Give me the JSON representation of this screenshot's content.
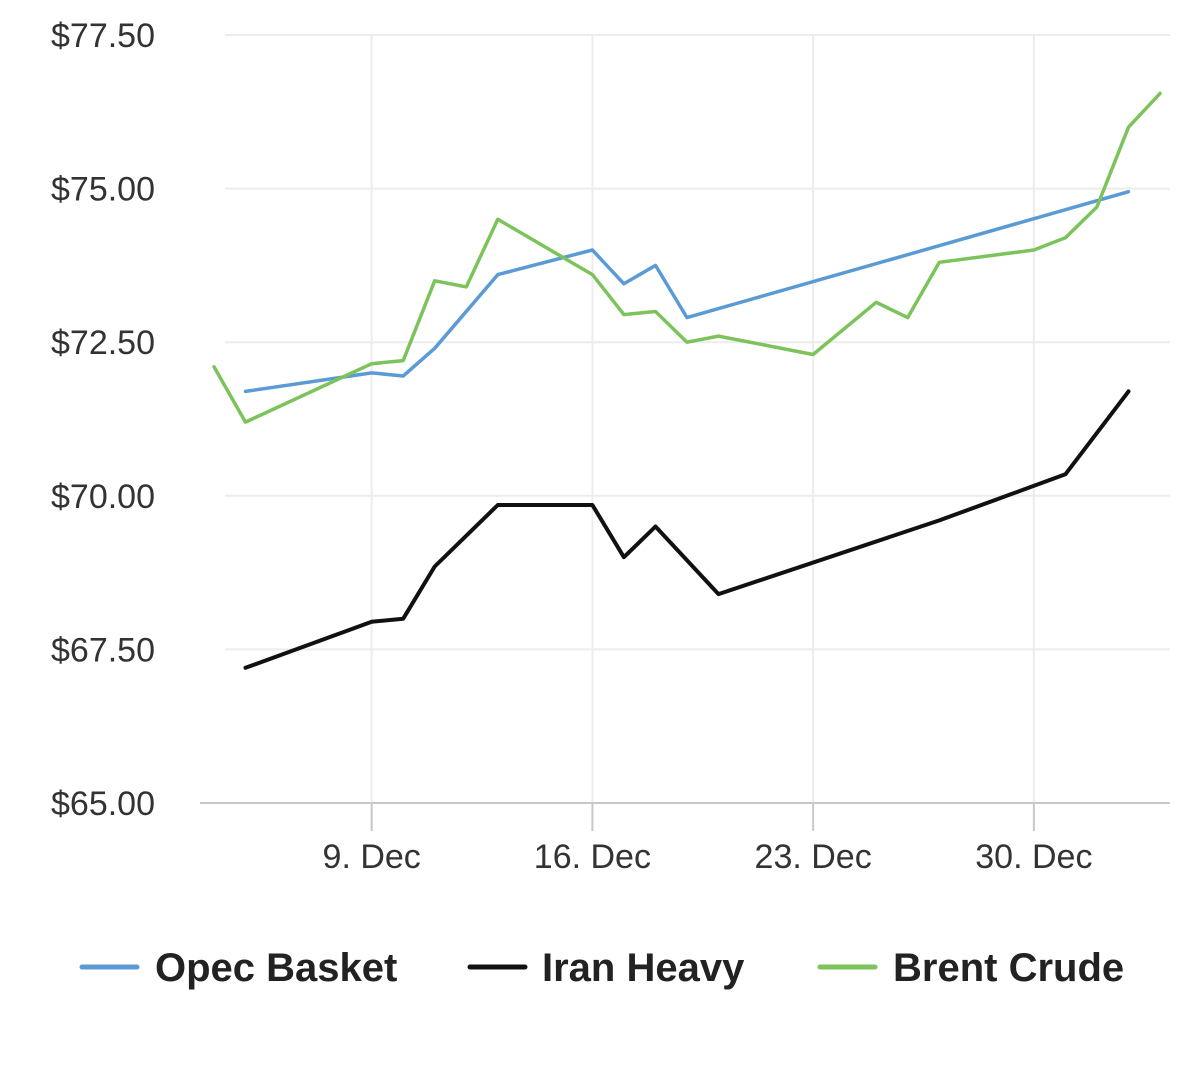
{
  "chart_data": {
    "type": "line",
    "title": "",
    "xlabel": "",
    "ylabel": "",
    "ylim": [
      65,
      77.5
    ],
    "y_ticks": [
      "$65.00",
      "$67.50",
      "$70.00",
      "$72.50",
      "$75.00",
      "$77.50"
    ],
    "x_range": [
      "Dec 4",
      "Jan 3"
    ],
    "x_ticks": [
      {
        "label": "9. Dec",
        "x": "Dec 9"
      },
      {
        "label": "16. Dec",
        "x": "Dec 16"
      },
      {
        "label": "23. Dec",
        "x": "Dec 23"
      },
      {
        "label": "30. Dec",
        "x": "Dec 30"
      }
    ],
    "grid": true,
    "legend_position": "bottom",
    "series": [
      {
        "name": "Opec Basket",
        "color": "#5b9bd5",
        "points": [
          {
            "x": "Dec 5",
            "y": 71.7
          },
          {
            "x": "Dec 9",
            "y": 72.0
          },
          {
            "x": "Dec 10",
            "y": 71.95
          },
          {
            "x": "Dec 11",
            "y": 72.4
          },
          {
            "x": "Dec 13",
            "y": 73.6
          },
          {
            "x": "Dec 16",
            "y": 74.0
          },
          {
            "x": "Dec 17",
            "y": 73.45
          },
          {
            "x": "Dec 18",
            "y": 73.75
          },
          {
            "x": "Dec 19",
            "y": 72.9
          },
          {
            "x": "Jan 2",
            "y": 74.95
          }
        ]
      },
      {
        "name": "Iran Heavy",
        "color": "#111111",
        "points": [
          {
            "x": "Dec 5",
            "y": 67.2
          },
          {
            "x": "Dec 9",
            "y": 67.95
          },
          {
            "x": "Dec 10",
            "y": 68.0
          },
          {
            "x": "Dec 11",
            "y": 68.85
          },
          {
            "x": "Dec 13",
            "y": 69.85
          },
          {
            "x": "Dec 16",
            "y": 69.85
          },
          {
            "x": "Dec 17",
            "y": 69.0
          },
          {
            "x": "Dec 18",
            "y": 69.5
          },
          {
            "x": "Dec 20",
            "y": 68.4
          },
          {
            "x": "Dec 27",
            "y": 69.6
          },
          {
            "x": "Dec 31",
            "y": 70.35
          },
          {
            "x": "Jan 2",
            "y": 71.7
          }
        ]
      },
      {
        "name": "Brent Crude",
        "color": "#7dc35b",
        "points": [
          {
            "x": "Dec 4",
            "y": 72.1
          },
          {
            "x": "Dec 5",
            "y": 71.2
          },
          {
            "x": "Dec 9",
            "y": 72.15
          },
          {
            "x": "Dec 10",
            "y": 72.2
          },
          {
            "x": "Dec 11",
            "y": 73.5
          },
          {
            "x": "Dec 12",
            "y": 73.4
          },
          {
            "x": "Dec 13",
            "y": 74.5
          },
          {
            "x": "Dec 16",
            "y": 73.6
          },
          {
            "x": "Dec 17",
            "y": 72.95
          },
          {
            "x": "Dec 18",
            "y": 73.0
          },
          {
            "x": "Dec 19",
            "y": 72.5
          },
          {
            "x": "Dec 20",
            "y": 72.6
          },
          {
            "x": "Dec 23",
            "y": 72.3
          },
          {
            "x": "Dec 25",
            "y": 73.15
          },
          {
            "x": "Dec 26",
            "y": 72.9
          },
          {
            "x": "Dec 27",
            "y": 73.8
          },
          {
            "x": "Dec 30",
            "y": 74.0
          },
          {
            "x": "Dec 31",
            "y": 74.2
          },
          {
            "x": "Jan 1",
            "y": 74.7
          },
          {
            "x": "Jan 2",
            "y": 76.0
          },
          {
            "x": "Jan 3",
            "y": 76.55
          }
        ]
      }
    ]
  }
}
